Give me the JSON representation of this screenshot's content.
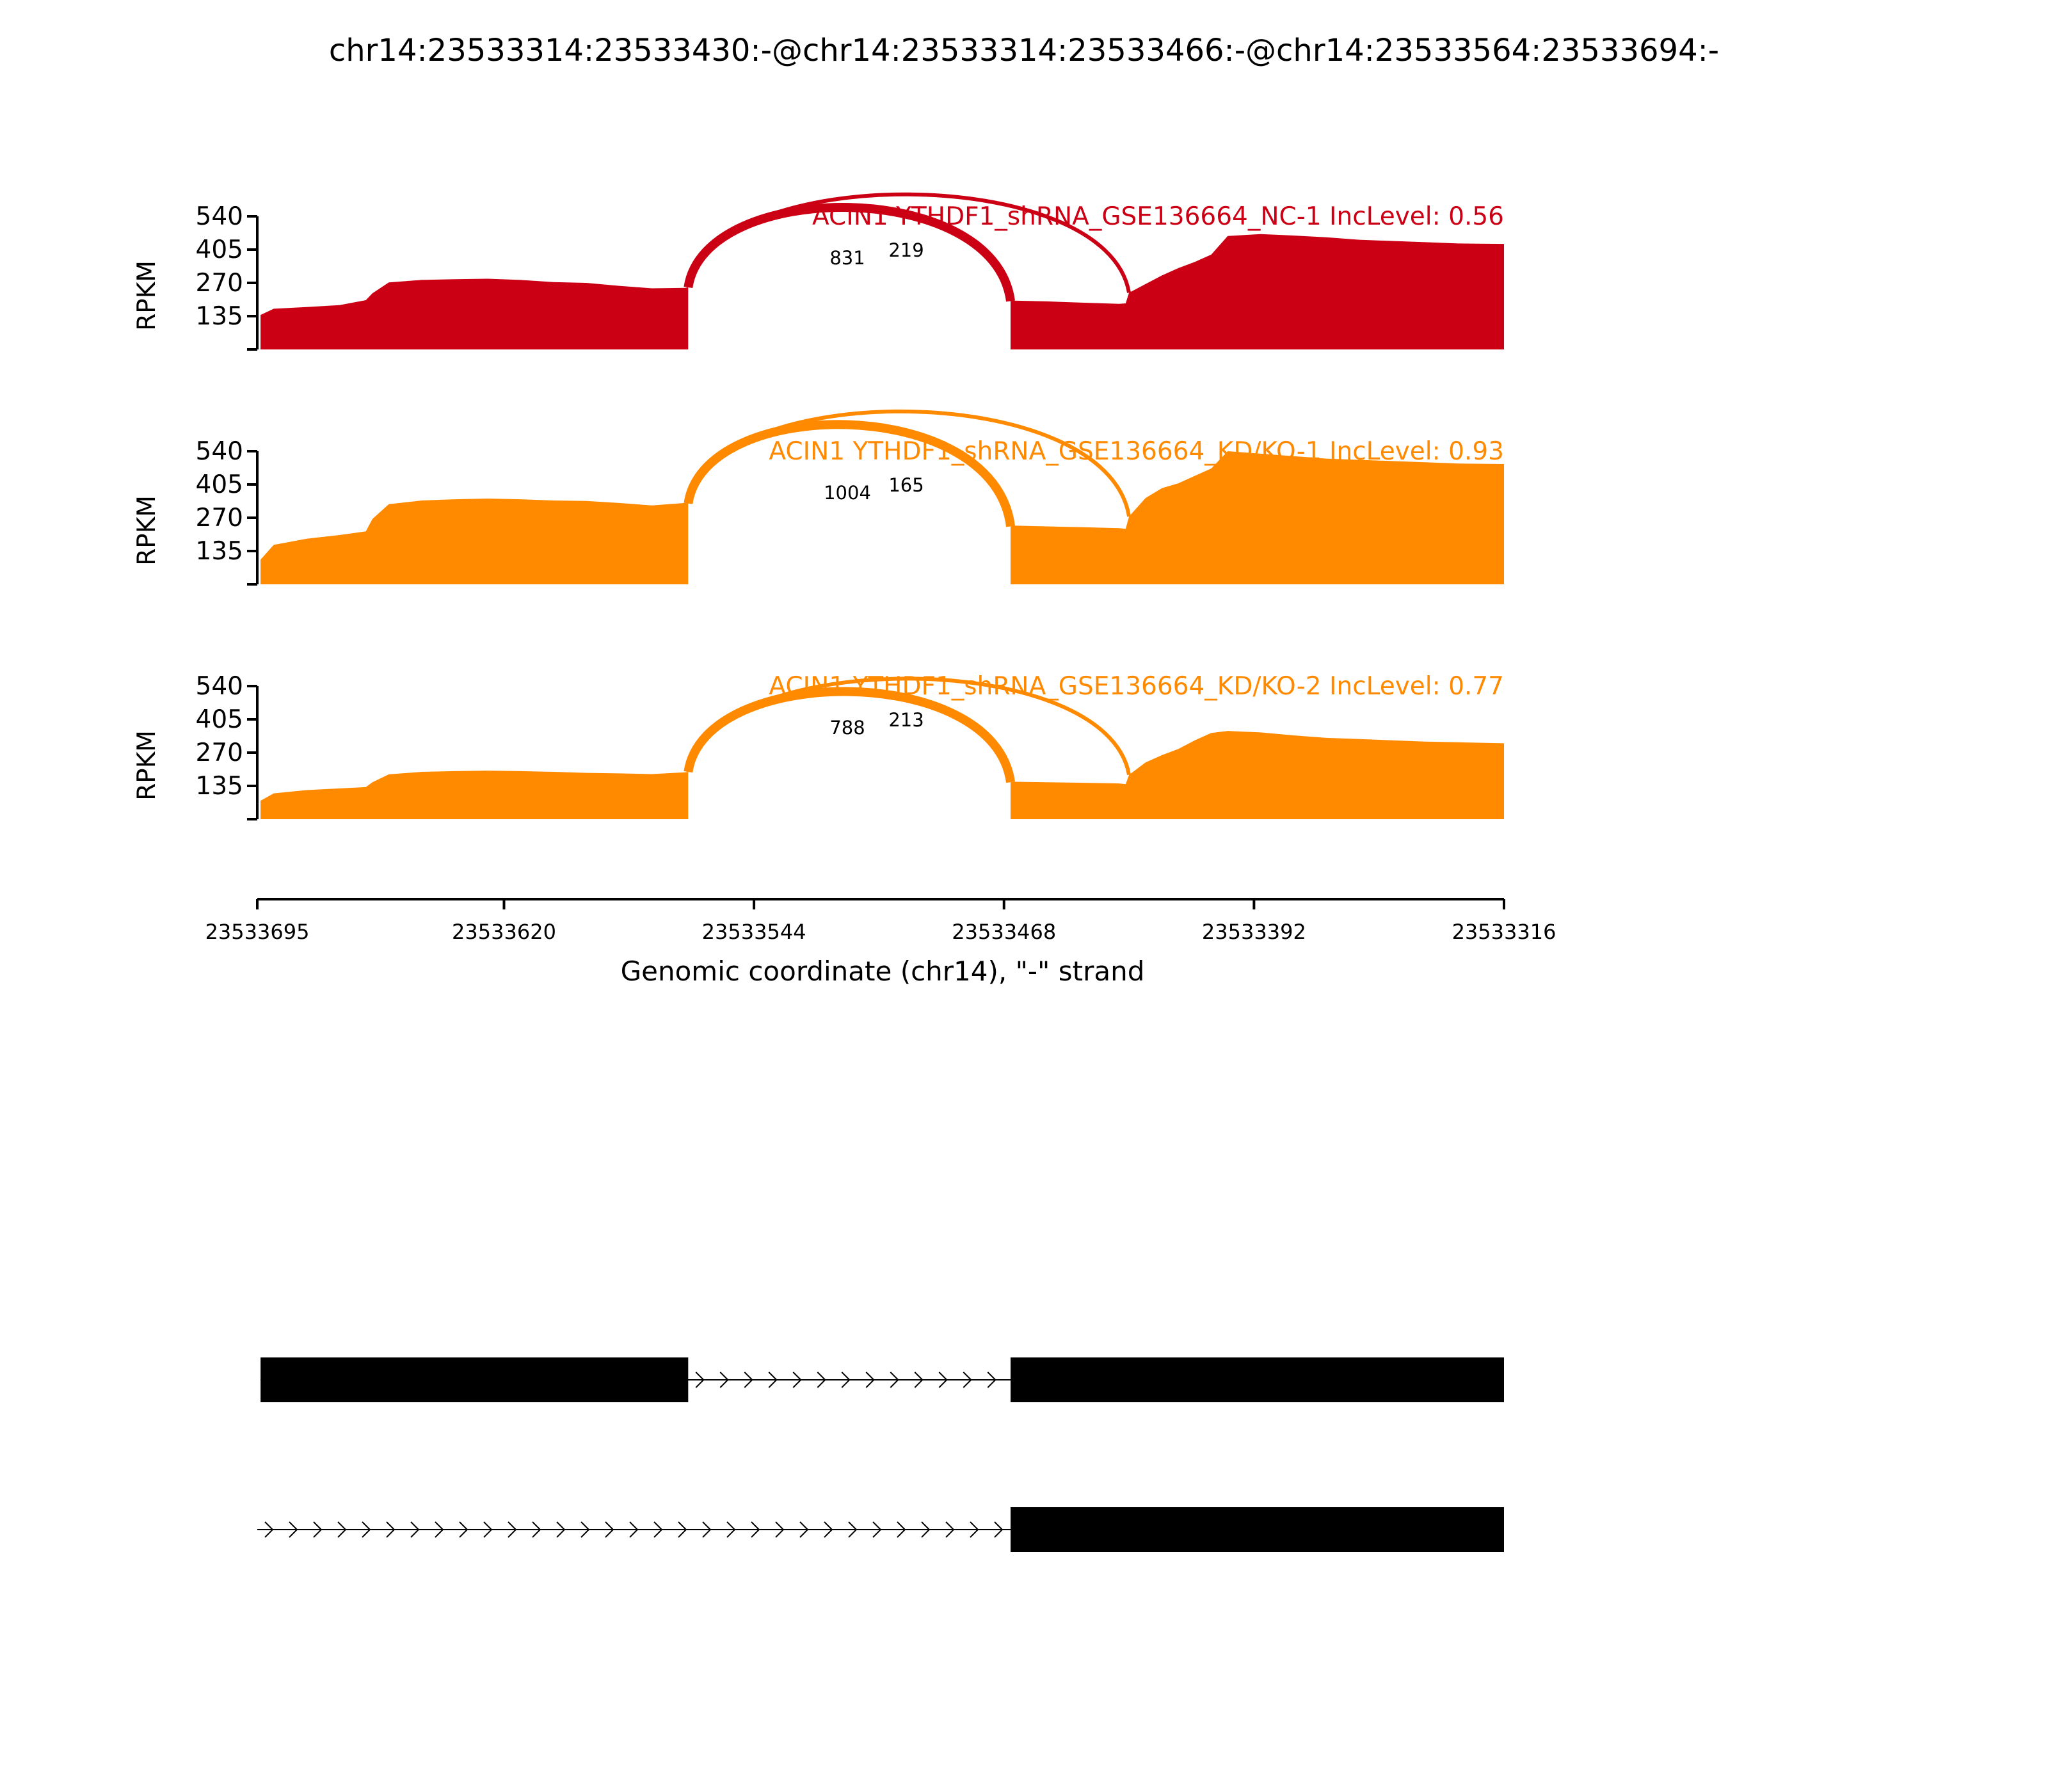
{
  "figure": {
    "title": "chr14:23533314:23533430:-@chr14:23533314:23533466:-@chr14:23533564:23533694:-"
  },
  "chart_data": {
    "type": "area",
    "ylabel": "RPKM",
    "ylim": [
      0,
      540
    ],
    "yticks": [
      135,
      270,
      405,
      540
    ],
    "xlabel": "Genomic coordinate (chr14), \"-\" strand",
    "xlim": [
      23533695,
      23533316
    ],
    "xticks": [
      23533695,
      23533620,
      23533544,
      23533468,
      23533392,
      23533316
    ],
    "coverage_x": [
      23533694,
      23533690,
      23533680,
      23533670,
      23533662,
      23533660,
      23533655,
      23533645,
      23533635,
      23533625,
      23533615,
      23533605,
      23533595,
      23533585,
      23533575,
      23533565,
      23533564,
      23533466,
      23533465,
      23533455,
      23533445,
      23533433,
      23533431,
      23533430,
      23533425,
      23533420,
      23533415,
      23533410,
      23533405,
      23533400,
      23533390,
      23533380,
      23533370,
      23533360,
      23533350,
      23533340,
      23533330,
      23533316
    ],
    "series": [
      {
        "name": "ACIN1 YTHDF1_shRNA_GSE136664_NC-1 IncLevel: 0.56",
        "color": "#cc0014",
        "coverage": [
          140,
          165,
          172,
          180,
          200,
          228,
          272,
          282,
          285,
          287,
          282,
          273,
          270,
          258,
          248,
          250,
          252,
          196,
          198,
          195,
          190,
          185,
          187,
          230,
          265,
          300,
          330,
          355,
          385,
          460,
          468,
          462,
          455,
          445,
          440,
          435,
          430,
          428
        ],
        "junctions": [
          {
            "from": 23533564,
            "to": 23533466,
            "count": "831"
          },
          {
            "from": 23533564,
            "to": 23533430,
            "count": "219"
          }
        ]
      },
      {
        "name": "ACIN1 YTHDF1_shRNA_GSE136664_KD/KO-1 IncLevel: 0.93",
        "color": "#ff8a00",
        "coverage": [
          100,
          160,
          185,
          200,
          215,
          265,
          325,
          340,
          345,
          348,
          345,
          340,
          338,
          330,
          320,
          330,
          328,
          235,
          238,
          235,
          232,
          228,
          225,
          275,
          350,
          390,
          410,
          440,
          470,
          540,
          530,
          520,
          510,
          505,
          500,
          495,
          490,
          488
        ],
        "junctions": [
          {
            "from": 23533564,
            "to": 23533466,
            "count": "1004"
          },
          {
            "from": 23533564,
            "to": 23533430,
            "count": "165"
          }
        ]
      },
      {
        "name": "ACIN1 YTHDF1_shRNA_GSE136664_KD/KO-2 IncLevel: 0.77",
        "color": "#ff8a00",
        "coverage": [
          75,
          105,
          118,
          125,
          130,
          150,
          182,
          192,
          195,
          197,
          195,
          192,
          188,
          186,
          183,
          190,
          192,
          150,
          152,
          150,
          148,
          145,
          142,
          180,
          230,
          260,
          285,
          320,
          350,
          358,
          352,
          340,
          330,
          325,
          320,
          315,
          312,
          308
        ],
        "junctions": [
          {
            "from": 23533564,
            "to": 23533466,
            "count": "788"
          },
          {
            "from": 23533564,
            "to": 23533430,
            "count": "213"
          }
        ]
      }
    ],
    "transcripts": [
      {
        "exons": [
          [
            23533694,
            23533564
          ],
          [
            23533466,
            23533316
          ]
        ]
      },
      {
        "exons": [
          [
            23533466,
            23533316
          ]
        ]
      }
    ]
  }
}
